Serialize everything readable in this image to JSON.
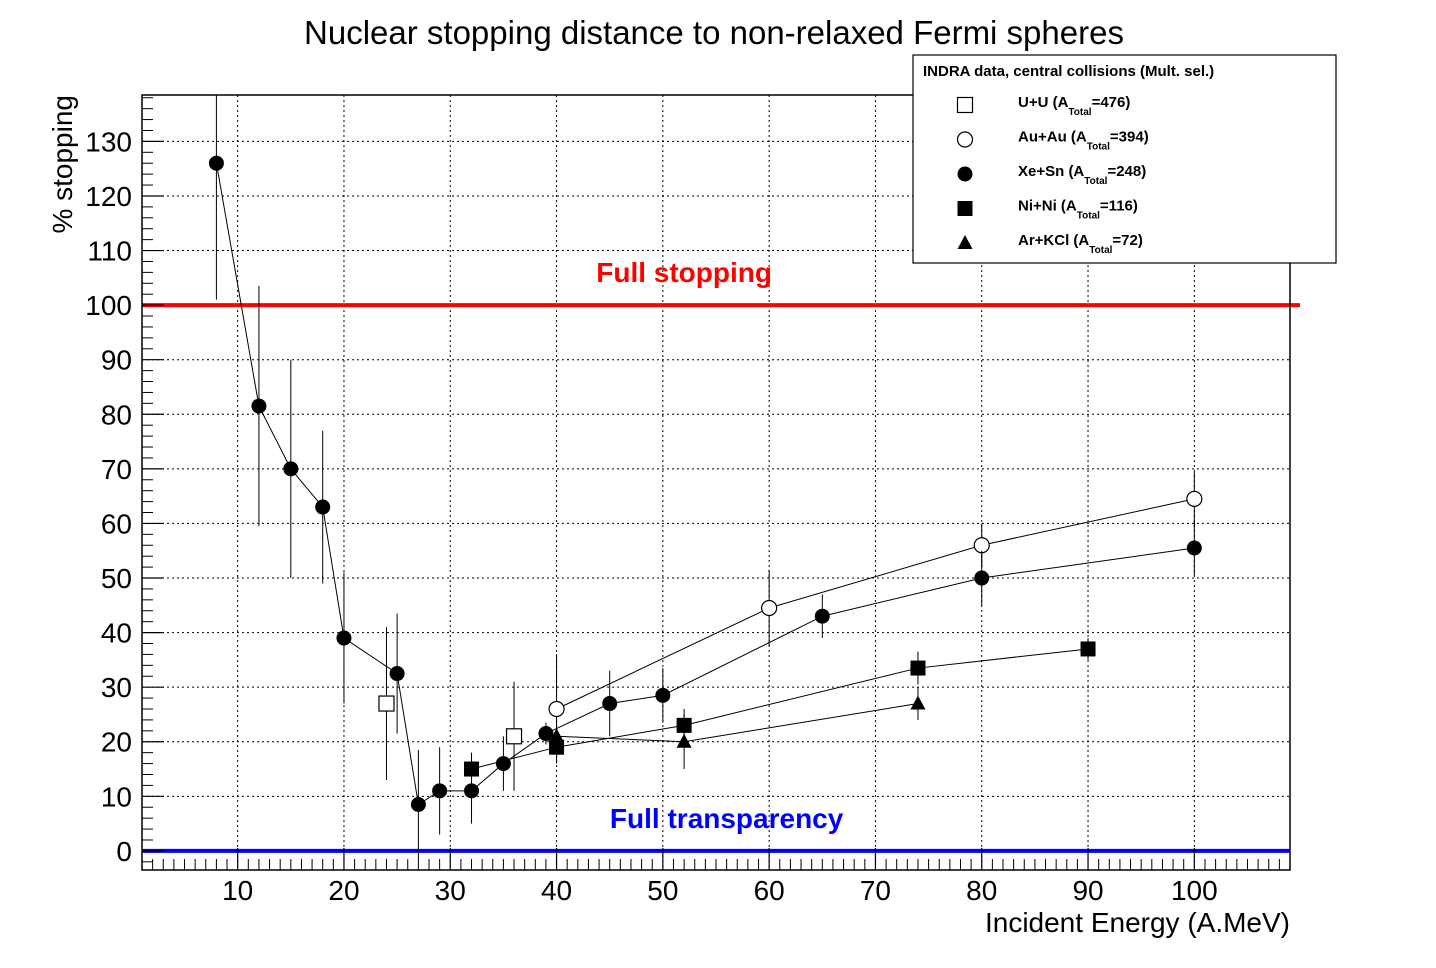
{
  "chart_data": {
    "type": "scatter",
    "title": "Nuclear stopping distance to non-relaxed Fermi spheres",
    "xlabel": "Incident Energy (A.MeV)",
    "ylabel": "% stopping",
    "xlim": [
      1,
      109
    ],
    "ylim": [
      -3.5,
      138.5
    ],
    "xticks": [
      10,
      20,
      30,
      40,
      50,
      60,
      70,
      80,
      90,
      100
    ],
    "yticks": [
      0,
      10,
      20,
      30,
      40,
      50,
      60,
      70,
      80,
      90,
      100,
      110,
      120,
      130
    ],
    "grid": true,
    "reference_lines": [
      {
        "name": "full-stopping",
        "y": 100,
        "label": "Full stopping",
        "color": "#ff0000",
        "label_x": 52
      },
      {
        "name": "full-transparency",
        "y": 0,
        "label": "Full transparency",
        "color": "#0000ff",
        "label_x": 56
      }
    ],
    "legend": {
      "title": "INDRA data, central collisions (Mult. sel.)",
      "position": "top-right"
    },
    "series": [
      {
        "name": "U+U",
        "legend_main": "U+U (A",
        "legend_sub": "Total",
        "legend_tail": "=476)",
        "marker": "square-open",
        "connect": false,
        "points": [
          {
            "x": 24,
            "y": 27,
            "err": 14
          },
          {
            "x": 36,
            "y": 21,
            "err": 10
          }
        ]
      },
      {
        "name": "Au+Au",
        "legend_main": "Au+Au (A",
        "legend_sub": "Total",
        "legend_tail": "=394)",
        "marker": "circle-open",
        "connect": true,
        "points": [
          {
            "x": 40,
            "y": 26,
            "err": 10
          },
          {
            "x": 60,
            "y": 44.5,
            "err": 7
          },
          {
            "x": 80,
            "y": 56,
            "err": 4
          },
          {
            "x": 100,
            "y": 64.5,
            "err": 5
          }
        ]
      },
      {
        "name": "Xe+Sn",
        "legend_main": "Xe+Sn (A",
        "legend_sub": "Total",
        "legend_tail": "=248)",
        "marker": "circle-filled",
        "connect": true,
        "points": [
          {
            "x": 8,
            "y": 126,
            "err": 25
          },
          {
            "x": 12,
            "y": 81.5,
            "err": 22
          },
          {
            "x": 15,
            "y": 70,
            "err": 20
          },
          {
            "x": 18,
            "y": 63,
            "err": 14
          },
          {
            "x": 20,
            "y": 39,
            "err": 12
          },
          {
            "x": 25,
            "y": 32.5,
            "err": 11
          },
          {
            "x": 27,
            "y": 8.5,
            "err": 10
          },
          {
            "x": 29,
            "y": 11,
            "err": 8
          },
          {
            "x": 32,
            "y": 11,
            "err": 6
          },
          {
            "x": 35,
            "y": 16,
            "err": 5
          },
          {
            "x": 39,
            "y": 21.5,
            "err": 2
          },
          {
            "x": 45,
            "y": 27,
            "err": 6
          },
          {
            "x": 50,
            "y": 28.5,
            "err": 5
          },
          {
            "x": 65,
            "y": 43,
            "err": 4
          },
          {
            "x": 80,
            "y": 50,
            "err": 5
          },
          {
            "x": 100,
            "y": 55.5,
            "err": 5
          }
        ]
      },
      {
        "name": "Ni+Ni",
        "legend_main": "Ni+Ni (A",
        "legend_sub": "Total",
        "legend_tail": "=116)",
        "marker": "square-filled",
        "connect": true,
        "points": [
          {
            "x": 32,
            "y": 15,
            "err": 3
          },
          {
            "x": 40,
            "y": 19,
            "err": 2
          },
          {
            "x": 52,
            "y": 23,
            "err": 3
          },
          {
            "x": 74,
            "y": 33.5,
            "err": 3
          },
          {
            "x": 90,
            "y": 37,
            "err": 2
          }
        ]
      },
      {
        "name": "Ar+KCl",
        "legend_main": "Ar+KCl (A",
        "legend_sub": "Total",
        "legend_tail": "=72)",
        "marker": "triangle-filled",
        "connect": true,
        "points": [
          {
            "x": 40,
            "y": 21,
            "err": 2
          },
          {
            "x": 52,
            "y": 20,
            "err": 5
          },
          {
            "x": 74,
            "y": 27,
            "err": 3
          }
        ]
      }
    ]
  }
}
